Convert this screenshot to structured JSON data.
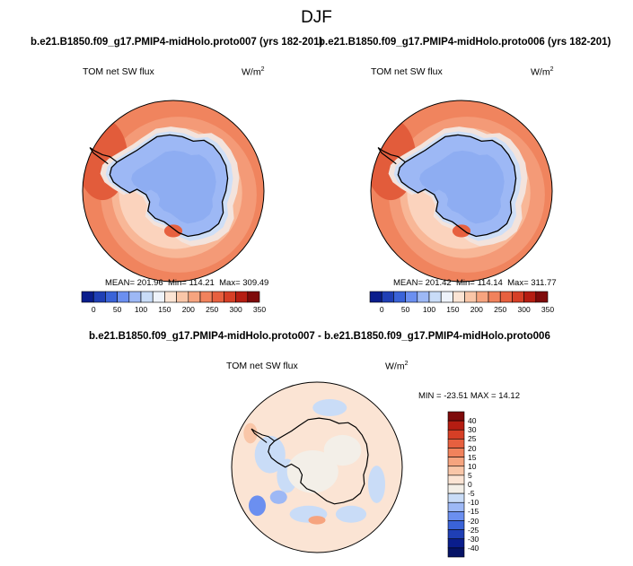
{
  "title": "DJF",
  "panels": [
    {
      "subtitle": "b.e21.B1850.f09_g17.PMIP4-midHolo.proto007 (yrs 182-201)",
      "left_label": "TOM net SW flux",
      "units_base": "W/m",
      "units_exp": "2",
      "stats": {
        "mean": "MEAN= 201.96",
        "min": "Min= 114.21",
        "max": "Max= 309.49"
      }
    },
    {
      "subtitle": "b.e21.B1850.f09_g17.PMIP4-midHolo.proto006 (yrs 182-201)",
      "left_label": "TOM net SW flux",
      "units_base": "W/m",
      "units_exp": "2",
      "stats": {
        "mean": "MEAN= 201.42",
        "min": "Min= 114.14",
        "max": "Max= 311.77"
      }
    },
    {
      "subtitle": "b.e21.B1850.f09_g17.PMIP4-midHolo.proto007 - b.e21.B1850.f09_g17.PMIP4-midHolo.proto006",
      "left_label": "TOM net SW flux",
      "units_base": "W/m",
      "units_exp": "2",
      "stats_text": "MIN = -23.51  MAX =  14.12"
    }
  ],
  "chart_data": [
    {
      "type": "heatmap",
      "projection": "south-polar-stereographic",
      "variable": "TOM net SW flux",
      "units": "W/m2",
      "mean": 201.96,
      "min": 114.21,
      "max": 309.49,
      "colorbar_ticks": [
        "0",
        "50",
        "100",
        "150",
        "200",
        "250",
        "300",
        "350"
      ],
      "colorbar_colors": [
        "#0a1d8c",
        "#1f3fb5",
        "#3a63d8",
        "#6b8ff0",
        "#9db8f5",
        "#c9dcf7",
        "#eef3fa",
        "#fbe4d4",
        "#f9c6a8",
        "#f6a47f",
        "#f1825c",
        "#e7603f",
        "#d63f26",
        "#b51d12",
        "#7e0a0a"
      ]
    },
    {
      "type": "heatmap",
      "projection": "south-polar-stereographic",
      "variable": "TOM net SW flux",
      "units": "W/m2",
      "mean": 201.42,
      "min": 114.14,
      "max": 311.77,
      "colorbar_ticks": [
        "0",
        "50",
        "100",
        "150",
        "200",
        "250",
        "300",
        "350"
      ],
      "colorbar_colors": [
        "#0a1d8c",
        "#1f3fb5",
        "#3a63d8",
        "#6b8ff0",
        "#9db8f5",
        "#c9dcf7",
        "#eef3fa",
        "#fbe4d4",
        "#f9c6a8",
        "#f6a47f",
        "#f1825c",
        "#e7603f",
        "#d63f26",
        "#b51d12",
        "#7e0a0a"
      ]
    },
    {
      "type": "heatmap",
      "projection": "south-polar-stereographic",
      "variable": "TOM net SW flux (difference)",
      "units": "W/m2",
      "min": -23.51,
      "max": 14.12,
      "colorbar_ticks": [
        "40",
        "30",
        "25",
        "20",
        "15",
        "10",
        "5",
        "0",
        "-5",
        "-10",
        "-15",
        "-20",
        "-25",
        "-30",
        "-40"
      ],
      "colorbar_colors": [
        "#7e0a0a",
        "#b51d12",
        "#d63f26",
        "#e7603f",
        "#f1825c",
        "#f6a47f",
        "#f9c6a8",
        "#fbe4d4",
        "#f3efe8",
        "#c9dcf7",
        "#9db8f5",
        "#6b8ff0",
        "#3a63d8",
        "#1f3fb5",
        "#0a1d8c",
        "#061366"
      ]
    }
  ]
}
